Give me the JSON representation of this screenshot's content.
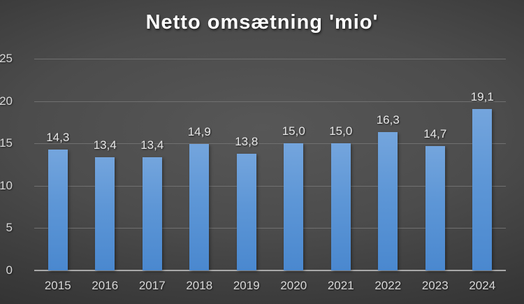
{
  "chart": {
    "title": "Netto omsætning 'mio'"
  },
  "chart_data": {
    "type": "bar",
    "title": "Netto omsætning 'mio'",
    "categories": [
      "2015",
      "2016",
      "2017",
      "2018",
      "2019",
      "2020",
      "2021",
      "2022",
      "2023",
      "2024"
    ],
    "values": [
      14.3,
      13.4,
      13.4,
      14.9,
      13.8,
      15.0,
      15.0,
      16.3,
      14.7,
      19.1
    ],
    "value_labels": [
      "14,3",
      "13,4",
      "13,4",
      "14,9",
      "13,8",
      "15,0",
      "15,0",
      "16,3",
      "14,7",
      "19,1"
    ],
    "xlabel": "",
    "ylabel": "",
    "ylim": [
      0,
      25
    ],
    "yticks": [
      0,
      5,
      10,
      15,
      20,
      25
    ],
    "ytick_labels": [
      "0",
      "5",
      "10",
      "15",
      "20",
      "25"
    ],
    "grid": true,
    "legend": false,
    "colors": {
      "bar_top": "#74A5DD",
      "bar_bottom": "#4A88CF",
      "gridline": "#707070",
      "axis_line": "#A9A9A9",
      "axis_text": "#D9D9D9",
      "value_text": "#E8E8E8",
      "title_text": "#FFFFFF",
      "background_center": "#575757",
      "background_edge": "#202020"
    }
  }
}
